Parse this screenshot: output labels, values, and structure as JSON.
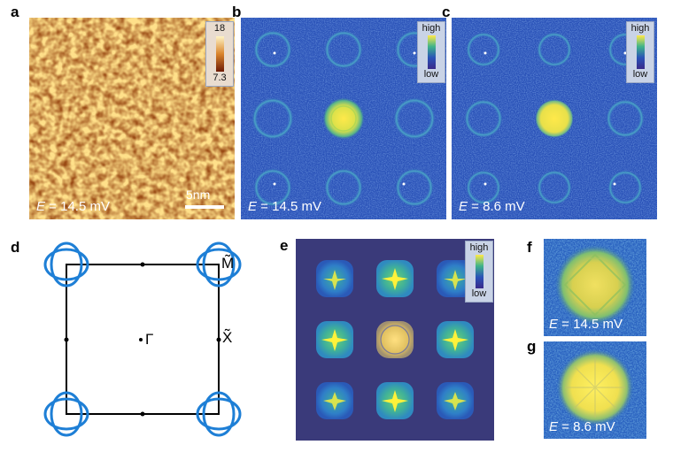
{
  "panels": {
    "a": {
      "label": "a",
      "energy_prefix": "E",
      "energy_text": " = 14.5 mV",
      "cbar_max": "18",
      "cbar_min": "7.3",
      "scale_bar": "5nm"
    },
    "b": {
      "label": "b",
      "energy_prefix": "E",
      "energy_text": " = 14.5 mV",
      "cbar_high": "high",
      "cbar_low": "low"
    },
    "c": {
      "label": "c",
      "energy_prefix": "E",
      "energy_text": " = 8.6 mV",
      "cbar_high": "high",
      "cbar_low": "low"
    },
    "d": {
      "label": "d",
      "gamma": "Γ",
      "x_point": "X̃",
      "m_point": "M̃"
    },
    "e": {
      "label": "e",
      "cbar_high": "high",
      "cbar_low": "low"
    },
    "f": {
      "label": "f",
      "energy_prefix": "E",
      "energy_text": " = 14.5 mV"
    },
    "g": {
      "label": "g",
      "energy_prefix": "E",
      "energy_text": " = 8.6 mV"
    }
  },
  "colors": {
    "bz_frame": "#000000",
    "fermi_pockets": "#1e7fd6",
    "map_background": "#2a52b8",
    "sim_background": "#3a3a7a"
  }
}
